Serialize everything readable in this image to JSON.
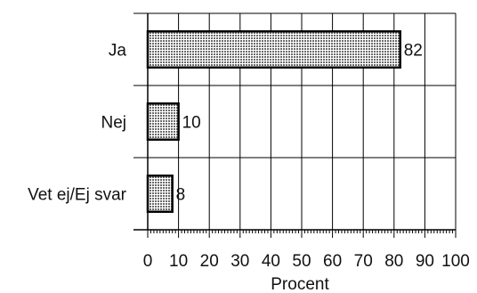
{
  "chart_data": {
    "type": "bar",
    "orientation": "horizontal",
    "categories": [
      "Ja",
      "Nej",
      "Vet ej/Ej svar"
    ],
    "values": [
      82,
      10,
      8
    ],
    "data_labels": [
      "82",
      "10",
      "8"
    ],
    "title": "",
    "xlabel": "Procent",
    "ylabel": "",
    "xlim": [
      0,
      100
    ],
    "x_ticks": [
      "0",
      "10",
      "20",
      "30",
      "40",
      "50",
      "60",
      "70",
      "80",
      "90",
      "100"
    ],
    "grid": true,
    "legend": "none",
    "bar_fill": "stippled-gray",
    "bar_stroke": "#000000"
  }
}
